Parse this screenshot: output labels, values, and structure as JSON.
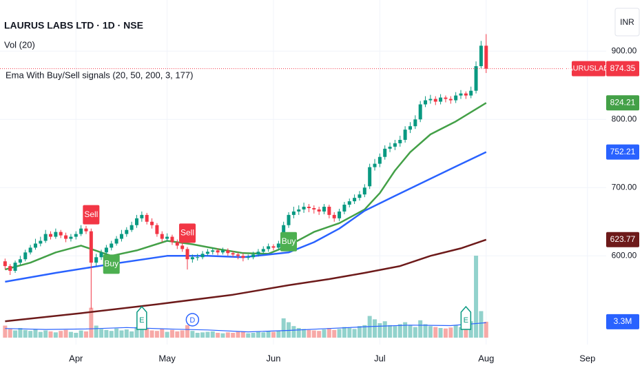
{
  "chart_data": {
    "type": "candlestick",
    "title": "LAURUS LABS LTD · 1D · NSE",
    "indicator": "Ema With Buy/Sell signals  (20, 50, 200, 3, 177)",
    "symbol": "LAURUSLABS",
    "currency": "INR",
    "xlim": [
      -1,
      118.7
    ],
    "xticks": [
      {
        "value": 14,
        "label": "Apr"
      },
      {
        "value": 32,
        "label": "May"
      },
      {
        "value": 53,
        "label": "Jun"
      },
      {
        "value": 74,
        "label": "Jul"
      },
      {
        "value": 95,
        "label": "Aug"
      },
      {
        "value": 115,
        "label": "Sep"
      }
    ],
    "ylim": [
      470,
      975
    ],
    "yticks": [
      {
        "value": 600,
        "label": "600.00"
      },
      {
        "value": 700,
        "label": "700.00"
      },
      {
        "value": 800,
        "label": "800.00"
      },
      {
        "value": 900,
        "label": "900.00"
      }
    ],
    "grid": true,
    "up_color": "#089981",
    "down_color": "#f23645",
    "open": [
      592,
      585,
      578,
      590,
      595,
      605,
      612,
      618,
      622,
      632,
      628,
      635,
      630,
      625,
      628,
      632,
      640,
      636,
      590,
      598,
      605,
      612,
      618,
      625,
      632,
      638,
      645,
      655,
      660,
      650,
      645,
      632,
      625,
      628,
      620,
      615,
      610,
      595,
      598,
      598,
      603,
      606,
      608,
      605,
      608,
      604,
      602,
      600,
      597,
      598,
      602,
      606,
      610,
      614,
      612,
      620,
      645,
      660,
      665,
      668,
      672,
      670,
      668,
      665,
      672,
      660,
      655,
      665,
      675,
      680,
      685,
      690,
      702,
      730,
      735,
      745,
      757,
      760,
      765,
      770,
      785,
      790,
      800,
      822,
      828,
      830,
      826,
      832,
      830,
      828,
      835,
      838,
      835,
      842,
      878,
      908
    ],
    "high": [
      596,
      588,
      593,
      600,
      609,
      616,
      625,
      628,
      638,
      636,
      640,
      638,
      634,
      632,
      636,
      645,
      644,
      640,
      603,
      609,
      616,
      622,
      629,
      638,
      642,
      650,
      660,
      665,
      663,
      655,
      648,
      636,
      633,
      631,
      624,
      619,
      613,
      602,
      603,
      607,
      610,
      612,
      611,
      612,
      611,
      607,
      605,
      604,
      602,
      606,
      610,
      614,
      618,
      617,
      622,
      650,
      664,
      672,
      674,
      678,
      676,
      674,
      672,
      676,
      675,
      664,
      669,
      679,
      684,
      690,
      695,
      705,
      735,
      742,
      750,
      762,
      766,
      770,
      776,
      790,
      796,
      806,
      827,
      834,
      836,
      834,
      837,
      835,
      834,
      840,
      843,
      841,
      848,
      885,
      915,
      925
    ],
    "low": [
      580,
      572,
      575,
      587,
      592,
      602,
      609,
      614,
      619,
      624,
      625,
      626,
      620,
      621,
      624,
      629,
      632,
      522,
      585,
      594,
      601,
      608,
      615,
      621,
      628,
      635,
      641,
      650,
      646,
      640,
      628,
      620,
      621,
      616,
      610,
      606,
      580,
      590,
      593,
      595,
      600,
      602,
      601,
      602,
      600,
      598,
      595,
      592,
      594,
      595,
      599,
      603,
      606,
      608,
      609,
      617,
      641,
      655,
      660,
      663,
      664,
      662,
      660,
      661,
      655,
      650,
      651,
      661,
      671,
      676,
      681,
      686,
      698,
      725,
      730,
      741,
      752,
      755,
      760,
      766,
      780,
      786,
      796,
      818,
      823,
      821,
      822,
      825,
      823,
      824,
      830,
      830,
      831,
      838,
      875,
      868
    ],
    "close": [
      585,
      578,
      590,
      595,
      605,
      612,
      618,
      622,
      632,
      628,
      635,
      630,
      625,
      628,
      632,
      640,
      636,
      590,
      598,
      605,
      612,
      618,
      625,
      632,
      638,
      645,
      655,
      660,
      650,
      645,
      632,
      625,
      628,
      620,
      615,
      610,
      595,
      598,
      598,
      603,
      606,
      608,
      605,
      608,
      604,
      602,
      600,
      597,
      598,
      602,
      606,
      610,
      614,
      612,
      618,
      645,
      660,
      665,
      668,
      672,
      670,
      668,
      665,
      672,
      660,
      655,
      665,
      675,
      680,
      685,
      690,
      700,
      730,
      735,
      745,
      757,
      760,
      765,
      770,
      785,
      790,
      800,
      822,
      828,
      830,
      826,
      832,
      830,
      828,
      835,
      838,
      835,
      842,
      878,
      908,
      874.35
    ],
    "volume": {
      "name": "Vol (20)",
      "ylim": [
        0,
        70
      ],
      "up_color": "#92d2cc",
      "down_color": "#f7a9a7",
      "values": [
        2.5,
        1.8,
        1.5,
        2.0,
        1.6,
        1.4,
        1.8,
        1.2,
        1.5,
        1.3,
        1.1,
        1.4,
        1.6,
        1.2,
        1.0,
        1.5,
        1.3,
        6.2,
        2.5,
        1.8,
        1.6,
        1.4,
        1.9,
        1.5,
        1.7,
        1.3,
        2.2,
        2.8,
        1.9,
        1.5,
        1.4,
        1.8,
        1.2,
        1.6,
        1.3,
        1.5,
        2.6,
        1.4,
        1.0,
        1.1,
        1.2,
        1.3,
        1.0,
        0.9,
        1.1,
        1.0,
        1.2,
        1.3,
        0.9,
        1.0,
        1.2,
        1.1,
        1.4,
        1.2,
        1.5,
        4.0,
        3.2,
        2.4,
        2.0,
        1.8,
        1.6,
        1.5,
        1.4,
        1.7,
        2.0,
        1.6,
        1.8,
        2.2,
        2.0,
        1.8,
        2.4,
        2.6,
        4.5,
        3.8,
        3.0,
        3.4,
        2.6,
        2.4,
        2.8,
        3.2,
        2.5,
        2.2,
        3.6,
        2.8,
        2.4,
        2.2,
        2.0,
        1.9,
        2.1,
        2.6,
        2.2,
        2.8,
        3.4,
        17.0,
        5.5,
        3.3
      ],
      "value_labels": [
        null,
        null,
        null,
        null,
        null,
        null,
        null,
        null,
        null,
        null,
        null,
        null,
        null,
        null,
        null,
        null,
        null,
        null,
        null,
        null,
        null,
        null,
        null,
        null,
        null,
        null,
        null,
        null,
        null,
        null,
        null,
        null,
        null,
        null,
        null,
        null,
        null,
        null,
        null,
        null,
        null,
        null,
        null,
        null,
        null,
        null,
        null,
        null,
        null,
        null,
        null,
        null,
        null,
        null,
        null,
        null,
        null,
        null,
        null,
        null,
        null,
        null,
        null,
        null,
        null,
        null,
        null,
        null,
        null,
        null,
        null,
        null,
        null,
        null,
        null,
        null,
        null,
        null,
        null,
        null,
        null,
        null,
        null,
        null,
        null,
        null,
        null,
        null,
        null,
        null,
        null,
        null,
        null,
        null,
        null,
        "3.3M"
      ],
      "ma": {
        "color": "#2962ff",
        "x": [
          0,
          8,
          16,
          24,
          32,
          40,
          48,
          56,
          64,
          72,
          80,
          88,
          95
        ],
        "values": [
          1.9,
          1.7,
          1.8,
          2.1,
          1.8,
          1.6,
          1.2,
          1.5,
          1.9,
          2.3,
          2.6,
          2.5,
          3.1
        ]
      }
    },
    "series": [
      {
        "color": "#43a047",
        "x": [
          0,
          5,
          10,
          15,
          21,
          26,
          32,
          37,
          42,
          47,
          52,
          56,
          61,
          66,
          71,
          74,
          77,
          80,
          84,
          89,
          95
        ],
        "values": [
          580,
          590,
          605,
          615,
          600,
          608,
          622,
          617,
          610,
          604,
          603,
          615,
          635,
          648,
          668,
          692,
          725,
          752,
          778,
          797,
          824.21
        ]
      },
      {
        "color": "#2962ff",
        "x": [
          0,
          10,
          21,
          32,
          40,
          47,
          56,
          61,
          66,
          71,
          77,
          84,
          89,
          95
        ],
        "values": [
          562,
          575,
          588,
          600,
          600,
          598,
          605,
          620,
          640,
          666,
          688,
          713,
          731,
          752.21
        ]
      },
      {
        "color": "#6d1a1a",
        "x": [
          0,
          15,
          30,
          45,
          56,
          64,
          71,
          78,
          84,
          90,
          95
        ],
        "values": [
          504,
          516,
          529,
          543,
          557,
          566,
          575,
          585,
          600,
          611,
          623.77
        ]
      }
    ],
    "signals": [
      {
        "x": 17,
        "label": "Sell"
      },
      {
        "x": 21,
        "label": "Buy"
      },
      {
        "x": 36,
        "label": "Sell"
      },
      {
        "x": 56,
        "label": "Buy"
      }
    ],
    "events": [
      {
        "x": 27,
        "label": "E"
      },
      {
        "x": 37,
        "label": "D"
      },
      {
        "x": 91,
        "label": "E"
      }
    ]
  }
}
